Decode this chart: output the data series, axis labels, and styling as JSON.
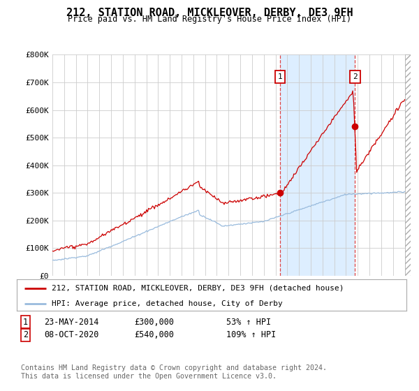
{
  "title": "212, STATION ROAD, MICKLEOVER, DERBY, DE3 9FH",
  "subtitle": "Price paid vs. HM Land Registry's House Price Index (HPI)",
  "ylim": [
    0,
    800000
  ],
  "yticks": [
    0,
    100000,
    200000,
    300000,
    400000,
    500000,
    600000,
    700000,
    800000
  ],
  "ytick_labels": [
    "£0",
    "£100K",
    "£200K",
    "£300K",
    "£400K",
    "£500K",
    "£600K",
    "£700K",
    "£800K"
  ],
  "hpi_color": "#99bbdd",
  "property_color": "#cc0000",
  "shade_color": "#ddeeff",
  "point1_year": 2014.38,
  "point1_value": 300000,
  "point2_year": 2020.77,
  "point2_value": 540000,
  "legend_property": "212, STATION ROAD, MICKLEOVER, DERBY, DE3 9FH (detached house)",
  "legend_hpi": "HPI: Average price, detached house, City of Derby",
  "point1_date": "23-MAY-2014",
  "point1_price": "£300,000",
  "point1_pct": "53% ↑ HPI",
  "point2_date": "08-OCT-2020",
  "point2_price": "£540,000",
  "point2_pct": "109% ↑ HPI",
  "footnote": "Contains HM Land Registry data © Crown copyright and database right 2024.\nThis data is licensed under the Open Government Licence v3.0.",
  "background_color": "#ffffff",
  "grid_color": "#cccccc"
}
